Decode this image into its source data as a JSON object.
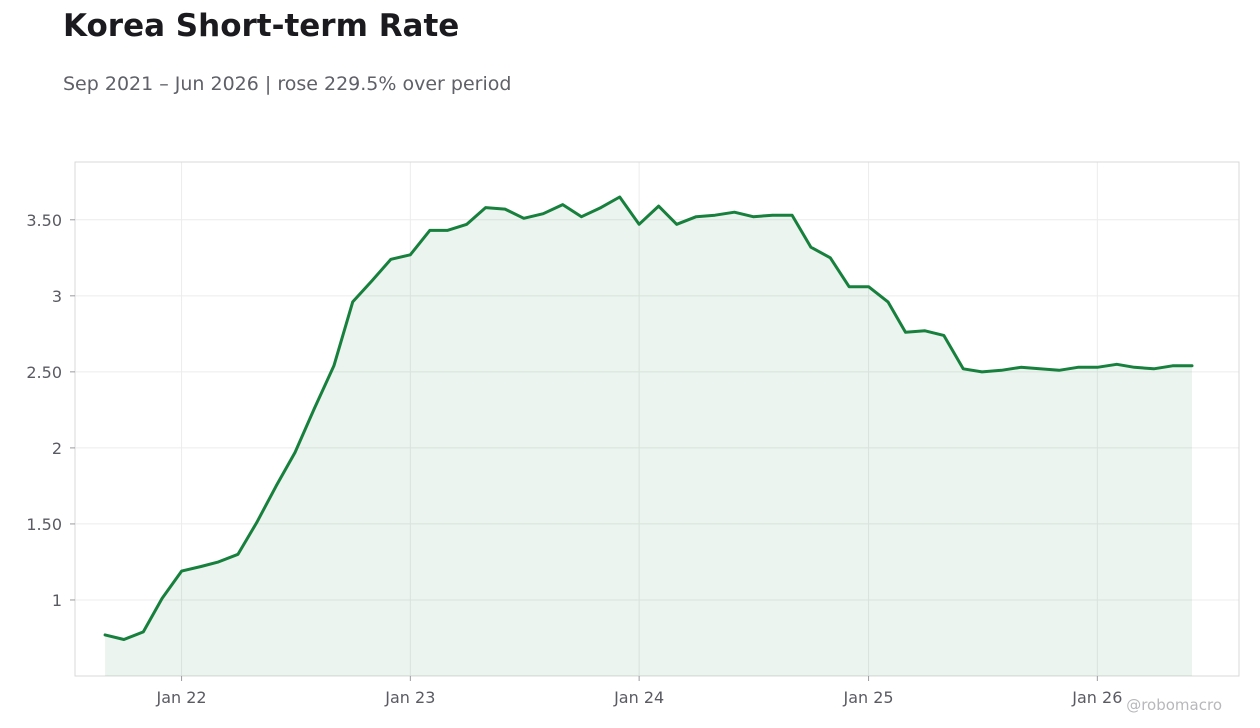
{
  "title": "Korea Short-term Rate",
  "subtitle": "Sep 2021 – Jun 2026 | rose 229.5% over period",
  "watermark": "@robomacro",
  "colors": {
    "line": "#17803d",
    "fill": "#17803d",
    "grid": "#ececec",
    "axis": "#d9d9d9",
    "text": "#5a5a63"
  },
  "chart_data": {
    "type": "area",
    "title": "Korea Short-term Rate",
    "subtitle": "Sep 2021 – Jun 2026 | rose 229.5% over period",
    "xlabel": "",
    "ylabel": "",
    "grid": true,
    "legend": "none",
    "xlim": [
      "2021-07-15",
      "2026-08-15"
    ],
    "ylim": [
      0.5,
      3.88
    ],
    "x_ticks": [
      {
        "date": "2022-01-01",
        "label": "Jan 22"
      },
      {
        "date": "2023-01-01",
        "label": "Jan 23"
      },
      {
        "date": "2024-01-01",
        "label": "Jan 24"
      },
      {
        "date": "2025-01-01",
        "label": "Jan 25"
      },
      {
        "date": "2026-01-01",
        "label": "Jan 26"
      }
    ],
    "y_ticks": [
      {
        "value": 1,
        "label": "1"
      },
      {
        "value": 1.5,
        "label": "1.50"
      },
      {
        "value": 2,
        "label": "2"
      },
      {
        "value": 2.5,
        "label": "2.50"
      },
      {
        "value": 3,
        "label": "3"
      },
      {
        "value": 3.5,
        "label": "3.50"
      }
    ],
    "series": [
      {
        "x": [
          "2021-09-01",
          "2021-10-01",
          "2021-11-01",
          "2021-12-01",
          "2022-01-01",
          "2022-02-01",
          "2022-03-01",
          "2022-04-01",
          "2022-05-01",
          "2022-06-01",
          "2022-07-01",
          "2022-08-01",
          "2022-09-01",
          "2022-10-01",
          "2022-11-01",
          "2022-12-01",
          "2023-01-01",
          "2023-02-01",
          "2023-03-01",
          "2023-04-01",
          "2023-05-01",
          "2023-06-01",
          "2023-07-01",
          "2023-08-01",
          "2023-09-01",
          "2023-10-01",
          "2023-11-01",
          "2023-12-01",
          "2024-01-01",
          "2024-02-01",
          "2024-03-01",
          "2024-04-01",
          "2024-05-01",
          "2024-06-01",
          "2024-07-01",
          "2024-08-01",
          "2024-09-01",
          "2024-10-01",
          "2024-11-01",
          "2024-12-01",
          "2025-01-01",
          "2025-02-01",
          "2025-03-01",
          "2025-04-01",
          "2025-05-01",
          "2025-06-01",
          "2025-07-01",
          "2025-08-01",
          "2025-09-01",
          "2025-10-01",
          "2025-11-01",
          "2025-12-01",
          "2026-01-01",
          "2026-02-01",
          "2026-03-01",
          "2026-04-01",
          "2026-05-01",
          "2026-06-01"
        ],
        "values": [
          0.77,
          0.74,
          0.79,
          1.01,
          1.19,
          1.22,
          1.25,
          1.3,
          1.51,
          1.75,
          1.97,
          2.26,
          2.54,
          2.96,
          3.1,
          3.24,
          3.27,
          3.43,
          3.43,
          3.47,
          3.58,
          3.57,
          3.51,
          3.54,
          3.6,
          3.52,
          3.58,
          3.65,
          3.47,
          3.59,
          3.47,
          3.52,
          3.53,
          3.55,
          3.52,
          3.53,
          3.53,
          3.32,
          3.25,
          3.06,
          3.06,
          2.96,
          2.76,
          2.77,
          2.74,
          2.52,
          2.5,
          2.51,
          2.53,
          2.52,
          2.51,
          2.53,
          2.53,
          2.55,
          2.53,
          2.52,
          2.54,
          2.54
        ]
      }
    ]
  }
}
